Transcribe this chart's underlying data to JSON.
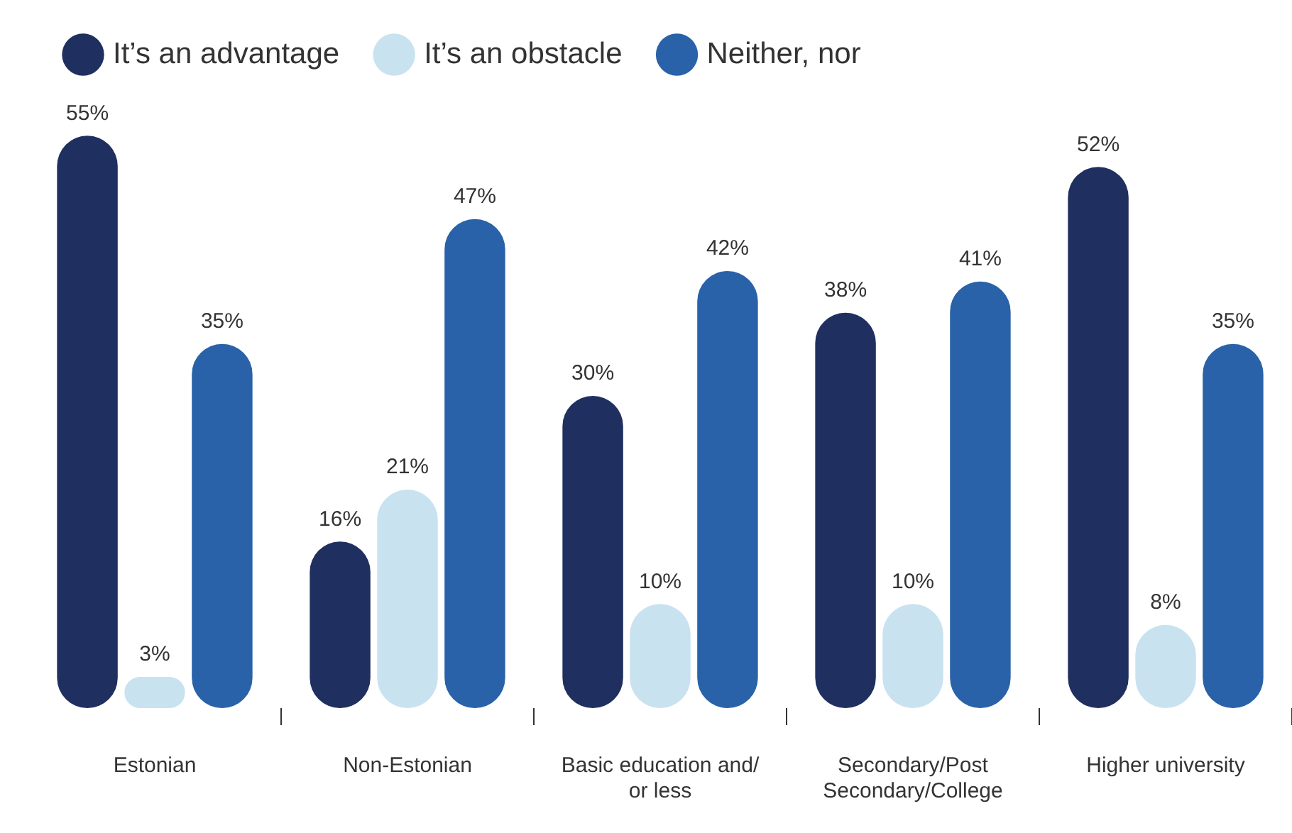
{
  "chart_data": {
    "type": "bar",
    "categories": [
      "Estonian",
      "Non-Estonian",
      "Basic education and/ or less",
      "Secondary/Post Secondary/College",
      "Higher university"
    ],
    "series": [
      {
        "name": "It’s an advantage",
        "color": "#1f2f5f",
        "values": [
          55,
          16,
          30,
          38,
          52
        ],
        "value_labels": [
          "55%",
          "16%",
          "30%",
          "38%",
          "52%"
        ]
      },
      {
        "name": "It’s an obstacle",
        "color": "#c9e2f0",
        "values": [
          3,
          21,
          10,
          10,
          8
        ],
        "value_labels": [
          "3%",
          "21%",
          "10%",
          "10%",
          "8%"
        ]
      },
      {
        "name": "Neither, nor",
        "color": "#2962a8",
        "values": [
          35,
          47,
          42,
          41,
          35
        ],
        "value_labels": [
          "35%",
          "47%",
          "42%",
          "41%",
          "35%"
        ]
      }
    ],
    "legend": "top left",
    "grid": false,
    "tick_labels": "x"
  }
}
